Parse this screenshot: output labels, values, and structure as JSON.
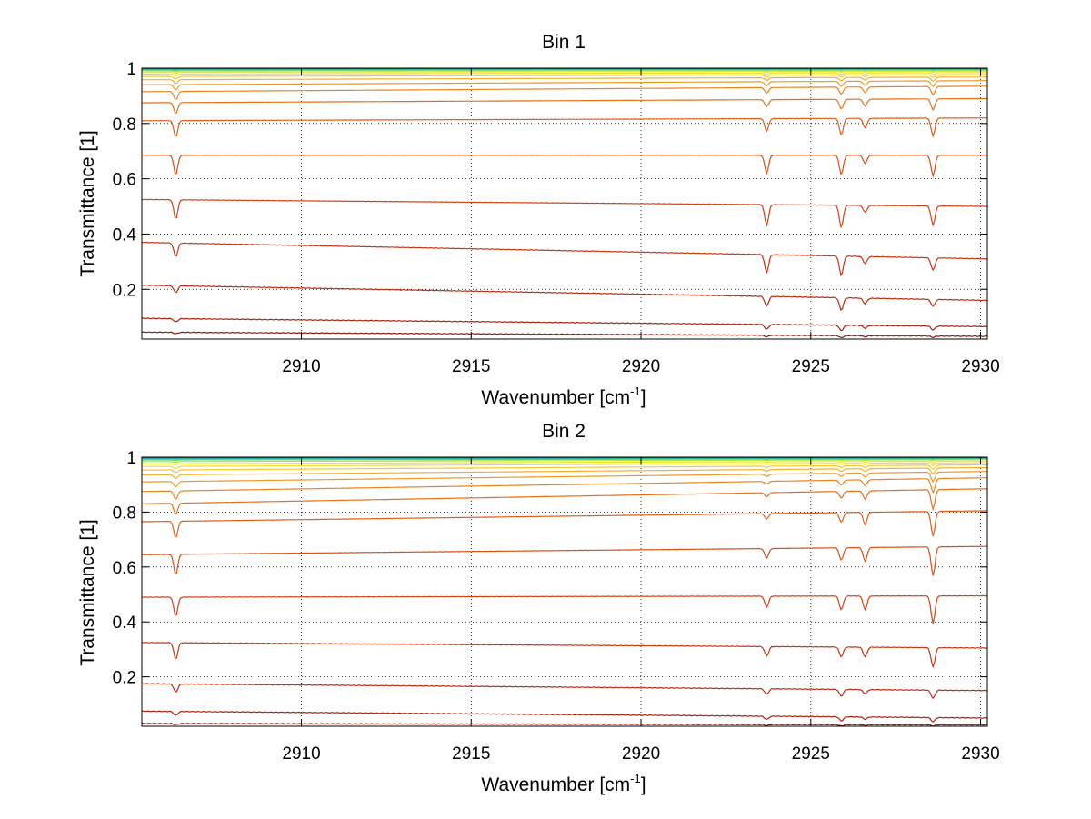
{
  "chart_data": [
    {
      "type": "line",
      "title": "Bin 1",
      "xlabel": "Wavenumber [cm",
      "xlabel_sup": "-1",
      "xlabel_close": "]",
      "ylabel": "Transmittance [1]",
      "xlim": [
        2905.3,
        2930.2
      ],
      "ylim": [
        0.02,
        1.0
      ],
      "grid": true,
      "x_ticks": [
        2910,
        2915,
        2920,
        2925,
        2930
      ],
      "y_ticks": [
        0.2,
        0.4,
        0.6,
        0.8,
        1.0
      ],
      "x_tick_labels": [
        "2910",
        "2915",
        "2920",
        "2925",
        "2930"
      ],
      "y_tick_labels": [
        "0.2",
        "0.4",
        "0.6",
        "0.8",
        "1"
      ],
      "lines": {
        "absorption_peaks_x": [
          2906.3,
          2923.7,
          2925.9,
          2926.6,
          2928.6
        ]
      },
      "series": [
        {
          "color": "#8b1a12",
          "start": 0.045,
          "end": 0.03,
          "depths": [
            0.005,
            0.006,
            0.008,
            0.004,
            0.005
          ]
        },
        {
          "color": "#a8230f",
          "start": 0.095,
          "end": 0.065,
          "depths": [
            0.012,
            0.018,
            0.02,
            0.01,
            0.014
          ]
        },
        {
          "color": "#b82c10",
          "start": 0.215,
          "end": 0.16,
          "depths": [
            0.025,
            0.035,
            0.045,
            0.02,
            0.025
          ]
        },
        {
          "color": "#c63512",
          "start": 0.37,
          "end": 0.31,
          "depths": [
            0.05,
            0.065,
            0.07,
            0.025,
            0.045
          ]
        },
        {
          "color": "#d04214",
          "start": 0.525,
          "end": 0.5,
          "depths": [
            0.07,
            0.075,
            0.08,
            0.025,
            0.07
          ]
        },
        {
          "color": "#d85015",
          "start": 0.685,
          "end": 0.685,
          "depths": [
            0.07,
            0.065,
            0.07,
            0.03,
            0.075
          ]
        },
        {
          "color": "#df5e18",
          "start": 0.81,
          "end": 0.82,
          "depths": [
            0.06,
            0.045,
            0.06,
            0.035,
            0.065
          ]
        },
        {
          "color": "#e5701c",
          "start": 0.875,
          "end": 0.89,
          "depths": [
            0.04,
            0.025,
            0.035,
            0.025,
            0.04
          ]
        },
        {
          "color": "#ea8420",
          "start": 0.915,
          "end": 0.935,
          "depths": [
            0.03,
            0.02,
            0.025,
            0.02,
            0.03
          ]
        },
        {
          "color": "#ee9a26",
          "start": 0.94,
          "end": 0.955,
          "depths": [
            0.02,
            0.015,
            0.018,
            0.015,
            0.02
          ]
        },
        {
          "color": "#f2b02c",
          "start": 0.958,
          "end": 0.968,
          "depths": [
            0.014,
            0.01,
            0.012,
            0.01,
            0.014
          ]
        },
        {
          "color": "#f5c832",
          "start": 0.97,
          "end": 0.977,
          "depths": [
            0.01,
            0.007,
            0.008,
            0.007,
            0.01
          ]
        },
        {
          "color": "#f4dc30",
          "start": 0.979,
          "end": 0.984,
          "depths": [
            0.006,
            0.005,
            0.005,
            0.005,
            0.006
          ]
        },
        {
          "color": "#e6ea2e",
          "start": 0.985,
          "end": 0.989,
          "depths": [
            0.004,
            0.003,
            0.003,
            0.003,
            0.004
          ]
        },
        {
          "color": "#b4e23a",
          "start": 0.99,
          "end": 0.992,
          "depths": [
            0.003,
            0.002,
            0.002,
            0.002,
            0.003
          ]
        },
        {
          "color": "#6cd25a",
          "start": 0.993,
          "end": 0.995,
          "depths": [
            0.002,
            0.001,
            0.001,
            0.001,
            0.002
          ]
        },
        {
          "color": "#2fbf8c",
          "start": 0.996,
          "end": 0.997,
          "depths": [
            0.001,
            0.001,
            0.001,
            0.001,
            0.001
          ]
        },
        {
          "color": "#1a9cc2",
          "start": 0.998,
          "end": 0.998,
          "depths": [
            0.001,
            0.0,
            0.0,
            0.0,
            0.001
          ]
        },
        {
          "color": "#1060c8",
          "start": 0.999,
          "end": 0.999,
          "depths": [
            0.0,
            0.0,
            0.0,
            0.0,
            0.0
          ]
        }
      ]
    },
    {
      "type": "line",
      "title": "Bin 2",
      "xlabel": "Wavenumber [cm",
      "xlabel_sup": "-1",
      "xlabel_close": "]",
      "ylabel": "Transmittance [1]",
      "xlim": [
        2905.3,
        2930.2
      ],
      "ylim": [
        0.02,
        1.0
      ],
      "grid": true,
      "x_ticks": [
        2910,
        2915,
        2920,
        2925,
        2930
      ],
      "y_ticks": [
        0.2,
        0.4,
        0.6,
        0.8,
        1.0
      ],
      "x_tick_labels": [
        "2910",
        "2915",
        "2920",
        "2925",
        "2930"
      ],
      "y_tick_labels": [
        "0.2",
        "0.4",
        "0.6",
        "0.8",
        "1"
      ],
      "lines": {
        "absorption_peaks_x": [
          2906.3,
          2923.7,
          2925.9,
          2926.6,
          2928.6
        ]
      },
      "series": [
        {
          "color": "#8b1a12",
          "start": 0.03,
          "end": 0.025,
          "depths": [
            0.004,
            0.004,
            0.005,
            0.003,
            0.004
          ]
        },
        {
          "color": "#a8230f",
          "start": 0.075,
          "end": 0.05,
          "depths": [
            0.015,
            0.012,
            0.015,
            0.008,
            0.015
          ]
        },
        {
          "color": "#b82c10",
          "start": 0.175,
          "end": 0.15,
          "depths": [
            0.03,
            0.02,
            0.025,
            0.015,
            0.03
          ]
        },
        {
          "color": "#c63512",
          "start": 0.325,
          "end": 0.305,
          "depths": [
            0.06,
            0.035,
            0.035,
            0.035,
            0.07
          ]
        },
        {
          "color": "#d04214",
          "start": 0.49,
          "end": 0.495,
          "depths": [
            0.07,
            0.04,
            0.05,
            0.05,
            0.1
          ]
        },
        {
          "color": "#d85015",
          "start": 0.645,
          "end": 0.675,
          "depths": [
            0.075,
            0.035,
            0.045,
            0.05,
            0.105
          ]
        },
        {
          "color": "#df5e18",
          "start": 0.765,
          "end": 0.805,
          "depths": [
            0.06,
            0.02,
            0.035,
            0.045,
            0.09
          ]
        },
        {
          "color": "#e5701c",
          "start": 0.83,
          "end": 0.885,
          "depths": [
            0.04,
            0.015,
            0.025,
            0.03,
            0.07
          ]
        },
        {
          "color": "#ea8420",
          "start": 0.875,
          "end": 0.925,
          "depths": [
            0.03,
            0.01,
            0.018,
            0.022,
            0.05
          ]
        },
        {
          "color": "#ee9a26",
          "start": 0.91,
          "end": 0.948,
          "depths": [
            0.02,
            0.008,
            0.012,
            0.015,
            0.035
          ]
        },
        {
          "color": "#f2b02c",
          "start": 0.935,
          "end": 0.962,
          "depths": [
            0.014,
            0.006,
            0.009,
            0.01,
            0.022
          ]
        },
        {
          "color": "#f5c832",
          "start": 0.953,
          "end": 0.972,
          "depths": [
            0.01,
            0.004,
            0.006,
            0.007,
            0.015
          ]
        },
        {
          "color": "#f4dc30",
          "start": 0.966,
          "end": 0.98,
          "depths": [
            0.007,
            0.003,
            0.004,
            0.005,
            0.01
          ]
        },
        {
          "color": "#e6ea2e",
          "start": 0.976,
          "end": 0.986,
          "depths": [
            0.005,
            0.002,
            0.003,
            0.003,
            0.007
          ]
        },
        {
          "color": "#b4e23a",
          "start": 0.984,
          "end": 0.991,
          "depths": [
            0.003,
            0.001,
            0.002,
            0.002,
            0.004
          ]
        },
        {
          "color": "#6cd25a",
          "start": 0.99,
          "end": 0.994,
          "depths": [
            0.002,
            0.001,
            0.001,
            0.001,
            0.002
          ]
        },
        {
          "color": "#2fbf8c",
          "start": 0.994,
          "end": 0.996,
          "depths": [
            0.001,
            0.0,
            0.001,
            0.001,
            0.001
          ]
        },
        {
          "color": "#1a9cc2",
          "start": 0.997,
          "end": 0.998,
          "depths": [
            0.001,
            0.0,
            0.0,
            0.0,
            0.001
          ]
        },
        {
          "color": "#1060c8",
          "start": 0.999,
          "end": 0.999,
          "depths": [
            0.0,
            0.0,
            0.0,
            0.0,
            0.0
          ]
        }
      ]
    }
  ]
}
